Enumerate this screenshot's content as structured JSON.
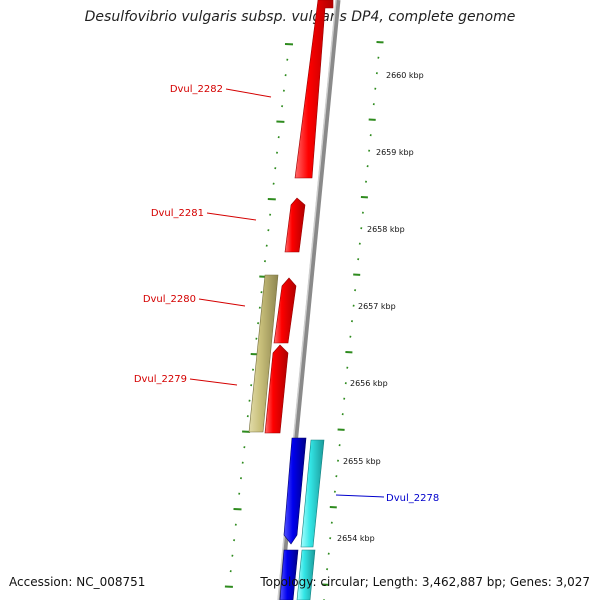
{
  "title": "Desulfovibrio vulgaris subsp. vulgaris DP4, complete genome",
  "footer": {
    "accession": "Accession: NC_008751",
    "topology": "Topology: circular; Length: 3,462,887 bp; Genes: 3,027"
  },
  "colors": {
    "forward_gene": "#ff0000",
    "forward_gene_dark": "#b00000",
    "reverse_gene_olive": "#c8bf7a",
    "reverse_gene_olive_dark": "#8e8650",
    "reverse_gene_blue": "#0000ee",
    "reverse_gene_blue_dark": "#00008a",
    "reverse_gene_cyan": "#33e6e6",
    "reverse_gene_cyan_dark": "#1a9a9a",
    "backbone": "#888888",
    "tick": "#2e8b1e",
    "label_red": "#d40000",
    "label_blue": "#0000cc"
  },
  "scale_labels": [
    "2660 kbp",
    "2659 kbp",
    "2658 kbp",
    "2657 kbp",
    "2656 kbp",
    "2655 kbp",
    "2654 kbp"
  ],
  "gene_labels": [
    {
      "text": "Dvul_2282",
      "color": "red"
    },
    {
      "text": "Dvul_2281",
      "color": "red"
    },
    {
      "text": "Dvul_2280",
      "color": "red"
    },
    {
      "text": "Dvul_2279",
      "color": "red"
    },
    {
      "text": "Dvul_2278",
      "color": "blue"
    }
  ]
}
